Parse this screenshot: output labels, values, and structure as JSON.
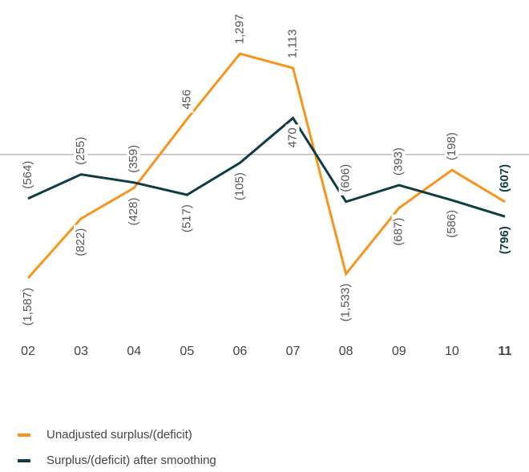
{
  "chart_data": {
    "type": "line",
    "categories": [
      "02",
      "03",
      "04",
      "05",
      "06",
      "07",
      "08",
      "09",
      "10",
      "11"
    ],
    "series": [
      {
        "name": "Unadjusted surplus/(deficit)",
        "color": "#f7941d",
        "values": [
          -1587,
          -822,
          -428,
          456,
          1297,
          1113,
          -1533,
          -687,
          -198,
          -607
        ],
        "value_labels": [
          "(1,587)",
          "(822)",
          "(428)",
          "456",
          "1,297",
          "1,113",
          "(1,533)",
          "(687)",
          "(198)",
          "(607)"
        ]
      },
      {
        "name": "Surplus/(deficit) after smoothing",
        "color": "#0e3c44",
        "values": [
          -564,
          -255,
          -359,
          -517,
          -105,
          470,
          -606,
          -393,
          -586,
          -796
        ],
        "value_labels": [
          "(564)",
          "(255)",
          "(359)",
          "(517)",
          "(105)",
          "470",
          "(606)",
          "(393)",
          "(586)",
          "(796)"
        ]
      }
    ],
    "ylim": [
      -1700,
      1400
    ]
  }
}
